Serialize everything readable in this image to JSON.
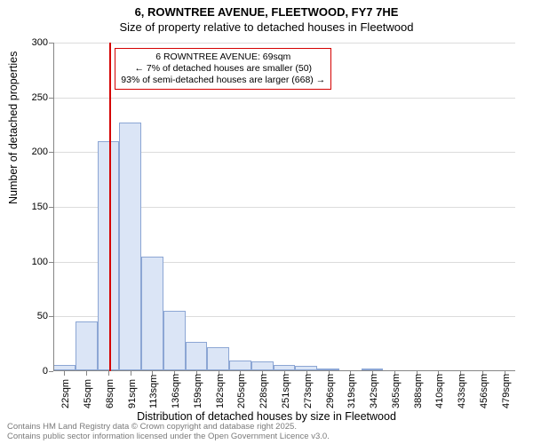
{
  "title_line1": "6, ROWNTREE AVENUE, FLEETWOOD, FY7 7HE",
  "title_line2": "Size of property relative to detached houses in Fleetwood",
  "y_axis_title": "Number of detached properties",
  "x_axis_title": "Distribution of detached houses by size in Fleetwood",
  "footer_line1": "Contains HM Land Registry data © Crown copyright and database right 2025.",
  "footer_line2": "Contains public sector information licensed under the Open Government Licence v3.0.",
  "annotation": {
    "line1": "6 ROWNTREE AVENUE: 69sqm",
    "line2": "← 7% of detached houses are smaller (50)",
    "line3": "93% of semi-detached houses are larger (668) →"
  },
  "chart": {
    "type": "histogram",
    "ylim": [
      0,
      300
    ],
    "ytick_step": 50,
    "yticks": [
      0,
      50,
      100,
      150,
      200,
      250,
      300
    ],
    "background_color": "#ffffff",
    "grid_color": "#dcdcdc",
    "axis_color": "#868686",
    "bar_fill": "#dbe5f6",
    "bar_stroke": "#8ca6d4",
    "marker_color": "#d40000",
    "marker_x_value": 69,
    "x_start": 11,
    "bin_width_sqm": 22.7,
    "x_tick_labels": [
      "22sqm",
      "45sqm",
      "68sqm",
      "91sqm",
      "113sqm",
      "136sqm",
      "159sqm",
      "182sqm",
      "205sqm",
      "228sqm",
      "251sqm",
      "273sqm",
      "296sqm",
      "319sqm",
      "342sqm",
      "365sqm",
      "388sqm",
      "410sqm",
      "433sqm",
      "456sqm",
      "479sqm"
    ],
    "values": [
      5,
      45,
      209,
      226,
      104,
      54,
      26,
      21,
      9,
      8,
      5,
      4,
      2,
      0,
      2,
      0,
      0,
      0,
      0,
      0,
      0
    ],
    "title_fontsize": 13,
    "axis_label_fontsize": 12.5,
    "tick_fontsize": 11,
    "annotation_fontsize": 10.5
  }
}
